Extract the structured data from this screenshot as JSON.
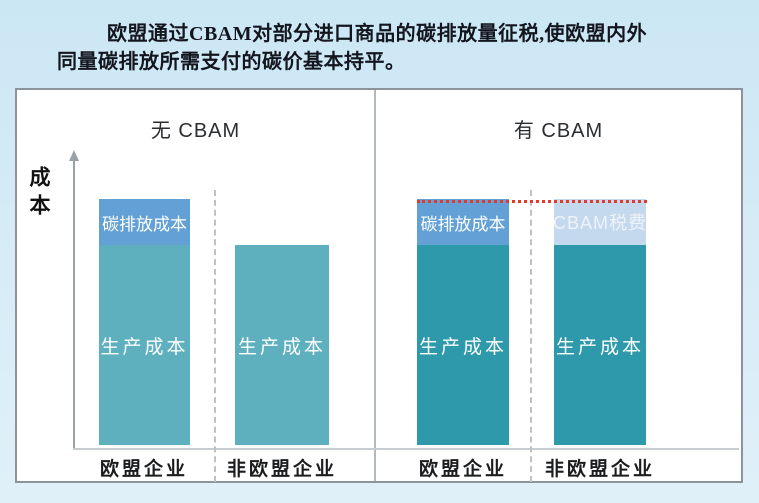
{
  "page": {
    "background_top": "#cbe7f4",
    "background_bottom": "#e0f0f9",
    "panel_background": "#ffffff",
    "panel_border": "#8d939a"
  },
  "title": {
    "lines": [
      "欧盟通过CBAM对部分进口商品的碳排放量征税,使欧盟内外",
      "同量碳排放所需支付的碳价基本持平。"
    ],
    "color": "#14161f"
  },
  "chart_data": [
    {
      "type": "bar",
      "stacked": true,
      "title": "无 CBAM",
      "ylabel": "成本",
      "xlabel": "",
      "axis_scale": "qualitative, no numeric ticks; values below are relative units (production cost = 1.0)",
      "grid": false,
      "legend_position": "labels printed inside bar segments",
      "categories": [
        "欧盟企业",
        "非欧盟企业"
      ],
      "series": [
        {
          "name": "生产成本",
          "values": [
            1.0,
            1.0
          ],
          "color": "#5fb0bf"
        },
        {
          "name": "碳排放成本",
          "values": [
            0.23,
            0
          ],
          "color": "#62a0d5"
        }
      ]
    },
    {
      "type": "bar",
      "stacked": true,
      "title": "有 CBAM",
      "ylabel": "成本",
      "xlabel": "",
      "axis_scale": "qualitative, no numeric ticks; values below are relative units (production cost = 1.0)",
      "grid": false,
      "legend_position": "labels printed inside bar segments",
      "categories": [
        "欧盟企业",
        "非欧盟企业"
      ],
      "series": [
        {
          "name": "生产成本",
          "values": [
            1.0,
            1.0
          ],
          "color": "#2e99aa"
        },
        {
          "name": "碳排放成本",
          "values": [
            0.23,
            0
          ],
          "color": "#62a0d5"
        },
        {
          "name": "CBAM税费",
          "values": [
            0,
            0.23
          ],
          "color": "#c5d9ee"
        }
      ],
      "annotation": {
        "kind": "equal-level-dotted-line",
        "color": "#e0392e",
        "level": 1.23,
        "meaning": "两根柱的总成本持平"
      }
    }
  ],
  "layout_colors": {
    "axis_gray": "#9aa1a7",
    "baseline_gray": "#c7ccd0",
    "dashed_divider_gray": "#bdc2c7",
    "red_dotted_line": "#e0392e"
  }
}
